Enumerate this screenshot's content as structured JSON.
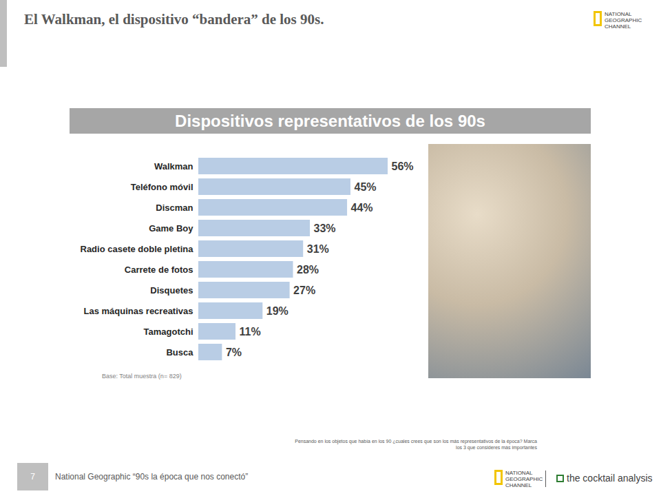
{
  "chart_data": {
    "type": "bar",
    "orientation": "horizontal",
    "title": "Dispositivos representativos de los 90s",
    "categories": [
      "Walkman",
      "Teléfono móvil",
      "Discman",
      "Game Boy",
      "Radio casete doble pletina",
      "Carrete de fotos",
      "Disquetes",
      "Las máquinas recreativas",
      "Tamagotchi",
      "Busca"
    ],
    "values": [
      56,
      45,
      44,
      33,
      31,
      28,
      27,
      19,
      11,
      7
    ],
    "value_labels": [
      "56%",
      "45%",
      "44%",
      "33%",
      "31%",
      "28%",
      "27%",
      "19%",
      "11%",
      "7%"
    ],
    "data_labels": true,
    "tick_labels": "y",
    "color": "#b9cde5",
    "note": "Base: Total muestra (n= 829)"
  },
  "slide": {
    "title": "El Walkman, el dispositivo “bandera” de los 90s.",
    "logo": "NATIONAL GEOGRAPHIC CHANNEL",
    "question": "Pensando en los objetos que había en los 90 ¿cuales crees que son los más representativos de la época? Marca los 3 que consideres más importantes",
    "footer_page": "7",
    "footer_text": "National Geographic “90s la época que nos conectó”",
    "footer_brand": "the cocktail analysis"
  }
}
